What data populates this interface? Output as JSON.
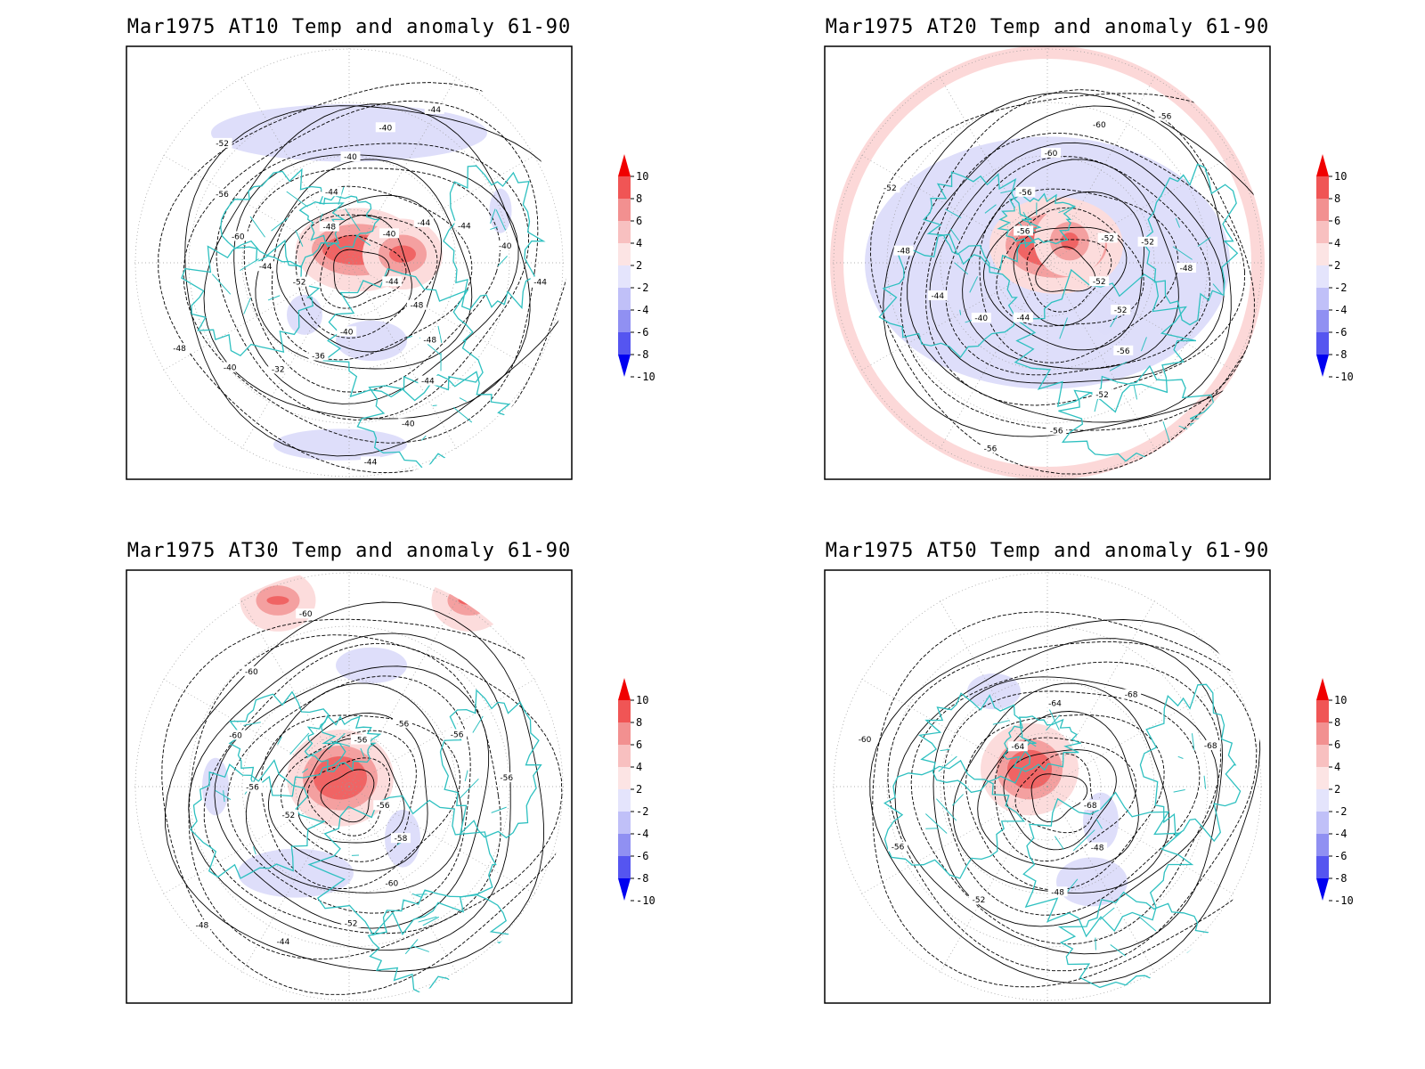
{
  "panels": [
    {
      "id": "at10",
      "title": "Mar1975 AT10 Temp and anomaly 61-90",
      "contour_labels": [
        "-44",
        "-48",
        "-48",
        "-44",
        "-40",
        "-44",
        "-40",
        "-36",
        "-32",
        "-40",
        "-48",
        "-52",
        "-44",
        "-60",
        "-56",
        "-52",
        "-48",
        "-44",
        "-40",
        "-40",
        "-44",
        "-40",
        "-44",
        "-44",
        "-40",
        "-44"
      ],
      "cold": [
        [
          0.5,
          0.2,
          0.62,
          0.1
        ],
        [
          0.4,
          0.62,
          0.08,
          0.06
        ],
        [
          0.84,
          0.38,
          0.05,
          0.07
        ],
        [
          0.48,
          0.92,
          0.3,
          0.04
        ],
        [
          0.55,
          0.68,
          0.16,
          0.06
        ]
      ],
      "warm": [
        [
          0.52,
          0.47,
          0.16,
          0.07
        ],
        [
          0.62,
          0.48,
          0.06,
          0.04
        ]
      ]
    },
    {
      "id": "at20",
      "title": "Mar1975 AT20 Temp and anomaly 61-90",
      "contour_labels": [
        "-52",
        "-52",
        "-56",
        "-52",
        "-56",
        "-56",
        "-44",
        "-40",
        "-44",
        "-48",
        "-52",
        "-56",
        "-56",
        "-60",
        "-60",
        "-56",
        "-52",
        "-52",
        "-48"
      ],
      "cold": [
        [
          0.5,
          0.5,
          0.82,
          0.55
        ],
        [
          0.63,
          0.62,
          0.05,
          0.06
        ]
      ],
      "warm": [
        [
          0.52,
          0.46,
          0.18,
          0.1
        ],
        [
          0.55,
          0.45,
          0.04,
          0.04
        ]
      ]
    },
    {
      "id": "at30",
      "title": "Mar1975 AT30 Temp and anomaly 61-90",
      "contour_labels": [
        "-56",
        "-58",
        "-60",
        "-52",
        "-44",
        "-48",
        "-52",
        "-56",
        "-60",
        "-60",
        "-60",
        "-56",
        "-56",
        "-56",
        "-56"
      ],
      "cold": [
        [
          0.55,
          0.22,
          0.16,
          0.05
        ],
        [
          0.38,
          0.7,
          0.26,
          0.08
        ],
        [
          0.62,
          0.62,
          0.08,
          0.1
        ],
        [
          0.2,
          0.5,
          0.06,
          0.1
        ]
      ],
      "warm": [
        [
          0.48,
          0.48,
          0.12,
          0.1
        ],
        [
          0.34,
          0.07,
          0.05,
          0.02
        ],
        [
          0.77,
          0.07,
          0.05,
          0.02
        ]
      ]
    },
    {
      "id": "at50",
      "title": "Mar1975 AT50 Temp and anomaly 61-90",
      "contour_labels": [
        "-68",
        "-48",
        "-48",
        "-52",
        "-56",
        "-60",
        "-64",
        "-64",
        "-68",
        "-68"
      ],
      "cold": [
        [
          0.38,
          0.28,
          0.12,
          0.05
        ],
        [
          0.62,
          0.58,
          0.08,
          0.1
        ],
        [
          0.6,
          0.72,
          0.16,
          0.08
        ]
      ],
      "warm": [
        [
          0.46,
          0.46,
          0.1,
          0.09
        ]
      ]
    }
  ],
  "colorbar": {
    "ticks": [
      "10",
      "8",
      "6",
      "4",
      "2",
      "-2",
      "-4",
      "-6",
      "-8",
      "-10"
    ],
    "colors": [
      "#f00000",
      "#f05555",
      "#f29090",
      "#f8c0c0",
      "#fce4e4",
      "#e4e4fc",
      "#c0c0f8",
      "#9090f2",
      "#5555f0",
      "#0000f0"
    ]
  },
  "coastline_color": "#2ec0c0"
}
